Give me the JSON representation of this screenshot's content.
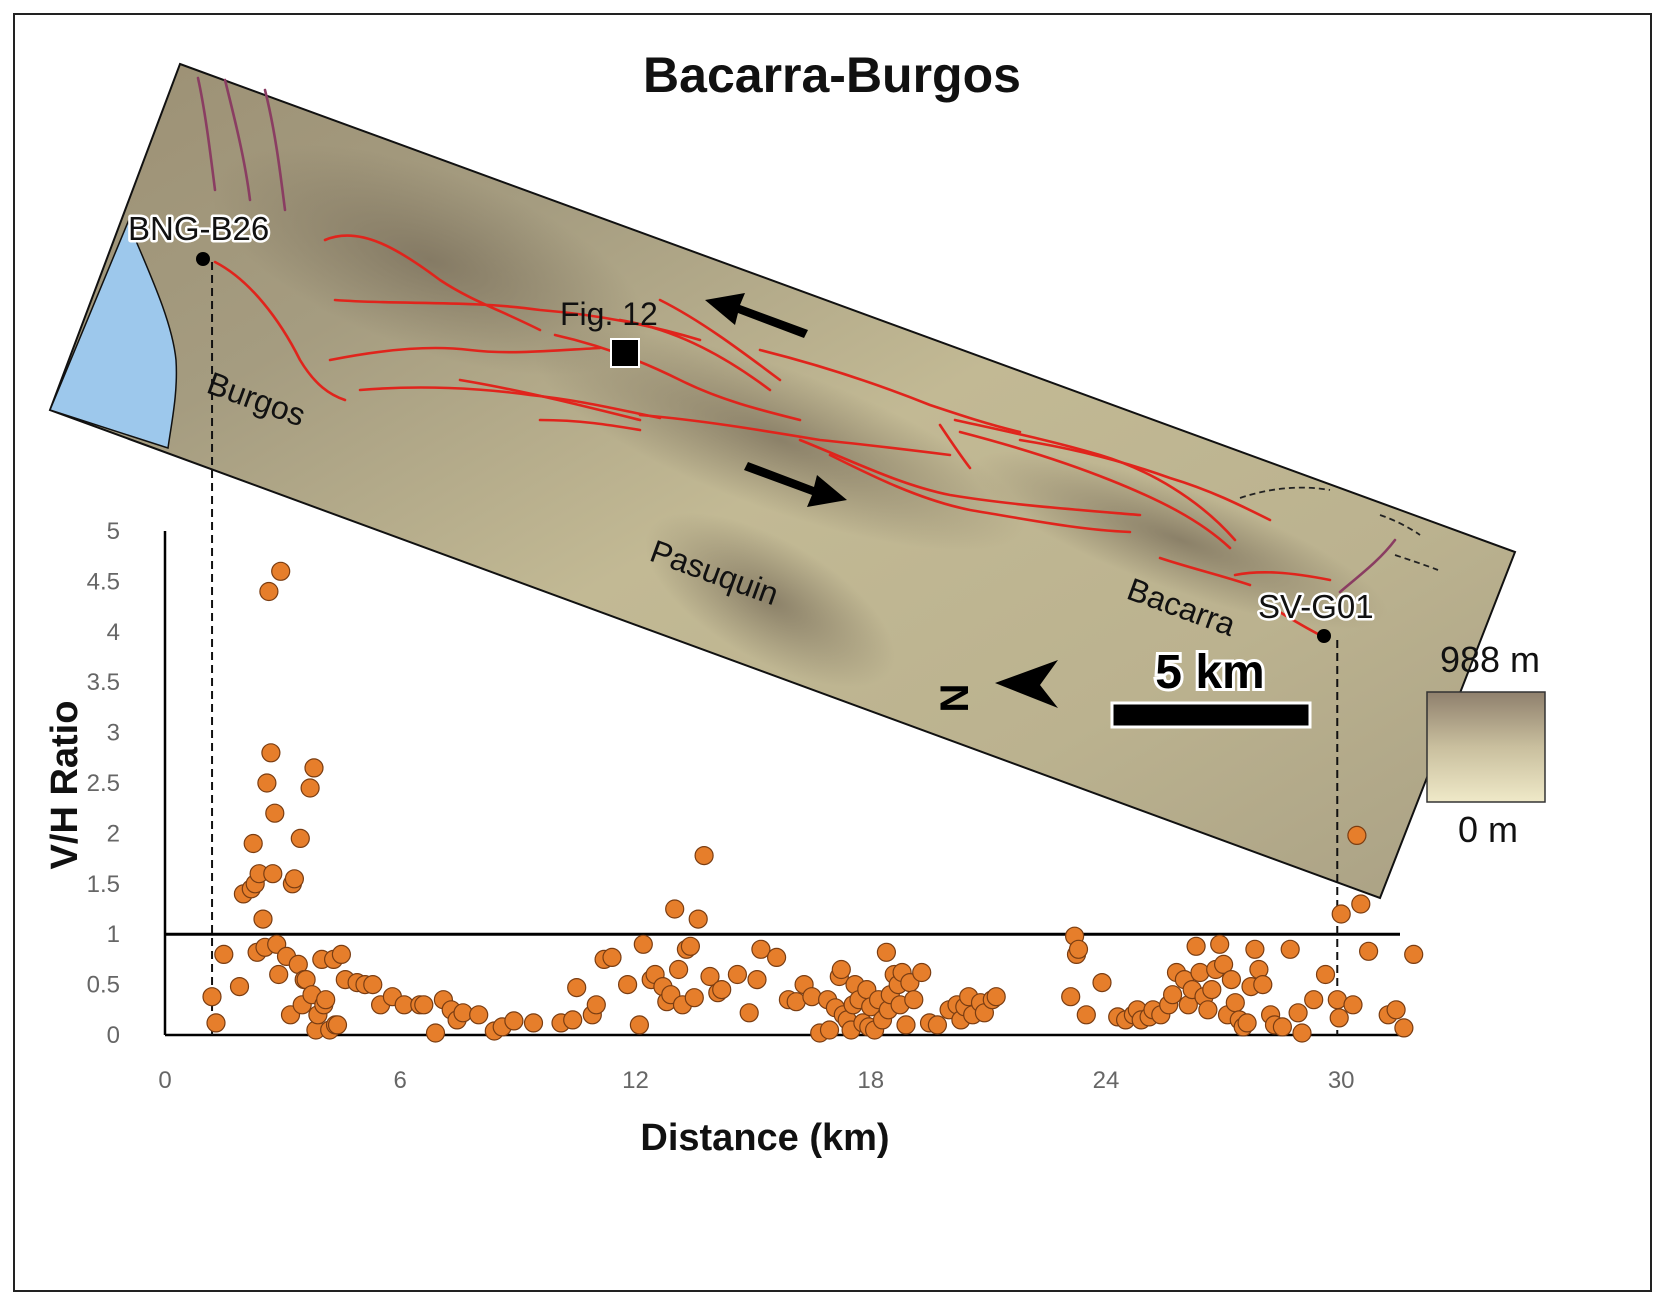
{
  "figure": {
    "title": "Bacarra-Burgos",
    "map_labels": {
      "burgos": "Burgos",
      "pasuquin": "Pasuquin",
      "bacarra": "Bacarra",
      "fig12": "Fig. 12",
      "north": "N",
      "scale_bar": "5 km"
    },
    "sites": {
      "start": "BNG-B26",
      "end": "SV-G01"
    },
    "elevation_legend": {
      "max_label": "988 m",
      "min_label": "0 m",
      "colors": [
        "#8f806d",
        "#e8e2bf"
      ]
    },
    "colors": {
      "terrain": "#bdb58f",
      "terrain_dark": "#7e7460",
      "sea": "#9dc8ec",
      "fault": "#e0241c",
      "point": "#e67e2b"
    }
  },
  "chart_data": {
    "type": "scatter",
    "xlabel": "Distance (km)",
    "ylabel": "V/H Ratio",
    "xlim": [
      0,
      31.5
    ],
    "ylim": [
      0,
      5
    ],
    "x_ticks": [
      "0",
      "6",
      "12",
      "18",
      "24",
      "30"
    ],
    "y_ticks": [
      "0",
      "0.5",
      "1",
      "1.5",
      "2",
      "2.5",
      "3",
      "3.5",
      "4",
      "4.5",
      "5"
    ],
    "reference_line_y": 1,
    "site_markers_x": [
      1.2,
      29.9
    ],
    "points": [
      [
        1.2,
        0.38
      ],
      [
        1.3,
        0.12
      ],
      [
        1.5,
        0.8
      ],
      [
        1.9,
        0.48
      ],
      [
        2.0,
        1.4
      ],
      [
        2.2,
        1.45
      ],
      [
        2.25,
        1.9
      ],
      [
        2.3,
        1.5
      ],
      [
        2.35,
        0.82
      ],
      [
        2.4,
        1.6
      ],
      [
        2.5,
        1.15
      ],
      [
        2.55,
        0.87
      ],
      [
        2.6,
        2.5
      ],
      [
        2.65,
        4.4
      ],
      [
        2.7,
        2.8
      ],
      [
        2.75,
        1.6
      ],
      [
        2.8,
        2.2
      ],
      [
        2.85,
        0.9
      ],
      [
        2.9,
        0.6
      ],
      [
        2.95,
        4.6
      ],
      [
        3.1,
        0.78
      ],
      [
        3.2,
        0.2
      ],
      [
        3.25,
        1.5
      ],
      [
        3.3,
        1.55
      ],
      [
        3.4,
        0.7
      ],
      [
        3.45,
        1.95
      ],
      [
        3.5,
        0.3
      ],
      [
        3.55,
        0.55
      ],
      [
        3.6,
        0.55
      ],
      [
        3.7,
        2.45
      ],
      [
        3.75,
        0.4
      ],
      [
        3.8,
        2.65
      ],
      [
        3.85,
        0.05
      ],
      [
        3.9,
        0.2
      ],
      [
        4.0,
        0.75
      ],
      [
        4.05,
        0.3
      ],
      [
        4.1,
        0.35
      ],
      [
        4.2,
        0.05
      ],
      [
        4.3,
        0.75
      ],
      [
        4.35,
        0.1
      ],
      [
        4.4,
        0.1
      ],
      [
        4.5,
        0.8
      ],
      [
        4.6,
        0.55
      ],
      [
        4.9,
        0.52
      ],
      [
        5.1,
        0.5
      ],
      [
        5.3,
        0.5
      ],
      [
        5.5,
        0.3
      ],
      [
        5.8,
        0.38
      ],
      [
        6.1,
        0.3
      ],
      [
        6.5,
        0.3
      ],
      [
        6.6,
        0.3
      ],
      [
        6.9,
        0.02
      ],
      [
        7.1,
        0.35
      ],
      [
        7.3,
        0.25
      ],
      [
        7.45,
        0.15
      ],
      [
        7.6,
        0.22
      ],
      [
        8.0,
        0.2
      ],
      [
        8.4,
        0.04
      ],
      [
        8.6,
        0.08
      ],
      [
        8.9,
        0.14
      ],
      [
        9.4,
        0.12
      ],
      [
        10.1,
        0.12
      ],
      [
        10.4,
        0.15
      ],
      [
        10.5,
        0.47
      ],
      [
        10.9,
        0.2
      ],
      [
        11.0,
        0.3
      ],
      [
        11.2,
        0.75
      ],
      [
        11.4,
        0.77
      ],
      [
        11.8,
        0.5
      ],
      [
        12.1,
        0.1
      ],
      [
        12.2,
        0.9
      ],
      [
        12.4,
        0.55
      ],
      [
        12.5,
        0.6
      ],
      [
        12.7,
        0.48
      ],
      [
        12.8,
        0.33
      ],
      [
        12.9,
        0.4
      ],
      [
        13.0,
        1.25
      ],
      [
        13.1,
        0.65
      ],
      [
        13.2,
        0.3
      ],
      [
        13.3,
        0.85
      ],
      [
        13.4,
        0.88
      ],
      [
        13.5,
        0.37
      ],
      [
        13.6,
        1.15
      ],
      [
        13.75,
        1.78
      ],
      [
        13.9,
        0.58
      ],
      [
        14.1,
        0.42
      ],
      [
        14.2,
        0.45
      ],
      [
        14.6,
        0.6
      ],
      [
        14.9,
        0.22
      ],
      [
        15.1,
        0.55
      ],
      [
        15.2,
        0.85
      ],
      [
        15.6,
        0.77
      ],
      [
        15.9,
        0.35
      ],
      [
        16.1,
        0.33
      ],
      [
        16.3,
        0.5
      ],
      [
        16.5,
        0.38
      ],
      [
        16.7,
        0.02
      ],
      [
        16.9,
        0.35
      ],
      [
        16.95,
        0.05
      ],
      [
        17.1,
        0.27
      ],
      [
        17.2,
        0.58
      ],
      [
        17.25,
        0.65
      ],
      [
        17.3,
        0.2
      ],
      [
        17.4,
        0.15
      ],
      [
        17.5,
        0.05
      ],
      [
        17.55,
        0.3
      ],
      [
        17.6,
        0.5
      ],
      [
        17.7,
        0.35
      ],
      [
        17.8,
        0.12
      ],
      [
        17.9,
        0.45
      ],
      [
        17.95,
        0.08
      ],
      [
        18.0,
        0.28
      ],
      [
        18.1,
        0.05
      ],
      [
        18.2,
        0.35
      ],
      [
        18.3,
        0.15
      ],
      [
        18.4,
        0.82
      ],
      [
        18.45,
        0.25
      ],
      [
        18.5,
        0.4
      ],
      [
        18.6,
        0.6
      ],
      [
        18.7,
        0.5
      ],
      [
        18.75,
        0.3
      ],
      [
        18.8,
        0.62
      ],
      [
        18.9,
        0.1
      ],
      [
        19.0,
        0.52
      ],
      [
        19.1,
        0.35
      ],
      [
        19.3,
        0.62
      ],
      [
        19.5,
        0.12
      ],
      [
        19.7,
        0.1
      ],
      [
        20.0,
        0.25
      ],
      [
        20.2,
        0.3
      ],
      [
        20.3,
        0.15
      ],
      [
        20.4,
        0.28
      ],
      [
        20.5,
        0.38
      ],
      [
        20.6,
        0.2
      ],
      [
        20.8,
        0.32
      ],
      [
        20.9,
        0.22
      ],
      [
        21.1,
        0.35
      ],
      [
        21.2,
        0.38
      ],
      [
        23.1,
        0.38
      ],
      [
        23.2,
        0.98
      ],
      [
        23.25,
        0.8
      ],
      [
        23.3,
        0.85
      ],
      [
        23.5,
        0.2
      ],
      [
        23.9,
        0.52
      ],
      [
        24.3,
        0.18
      ],
      [
        24.5,
        0.15
      ],
      [
        24.7,
        0.2
      ],
      [
        24.8,
        0.25
      ],
      [
        24.9,
        0.15
      ],
      [
        25.1,
        0.18
      ],
      [
        25.2,
        0.25
      ],
      [
        25.4,
        0.2
      ],
      [
        25.6,
        0.3
      ],
      [
        25.7,
        0.4
      ],
      [
        25.8,
        0.62
      ],
      [
        26.0,
        0.55
      ],
      [
        26.1,
        0.3
      ],
      [
        26.2,
        0.45
      ],
      [
        26.3,
        0.88
      ],
      [
        26.4,
        0.62
      ],
      [
        26.5,
        0.38
      ],
      [
        26.6,
        0.25
      ],
      [
        26.7,
        0.45
      ],
      [
        26.8,
        0.65
      ],
      [
        26.9,
        0.9
      ],
      [
        27.0,
        0.7
      ],
      [
        27.1,
        0.2
      ],
      [
        27.2,
        0.55
      ],
      [
        27.3,
        0.32
      ],
      [
        27.4,
        0.15
      ],
      [
        27.5,
        0.08
      ],
      [
        27.6,
        0.12
      ],
      [
        27.7,
        0.48
      ],
      [
        27.8,
        0.85
      ],
      [
        27.9,
        0.65
      ],
      [
        28.0,
        0.5
      ],
      [
        28.2,
        0.2
      ],
      [
        28.3,
        0.1
      ],
      [
        28.5,
        0.08
      ],
      [
        28.7,
        0.85
      ],
      [
        28.9,
        0.22
      ],
      [
        29.0,
        0.02
      ],
      [
        29.3,
        0.35
      ],
      [
        29.6,
        0.6
      ],
      [
        29.9,
        0.35
      ],
      [
        29.95,
        0.17
      ],
      [
        30.0,
        1.2
      ],
      [
        30.3,
        0.3
      ],
      [
        30.4,
        1.98
      ],
      [
        30.5,
        1.3
      ],
      [
        30.7,
        0.83
      ],
      [
        31.2,
        0.2
      ],
      [
        31.4,
        0.25
      ],
      [
        31.6,
        0.07
      ],
      [
        31.85,
        0.8
      ]
    ]
  }
}
